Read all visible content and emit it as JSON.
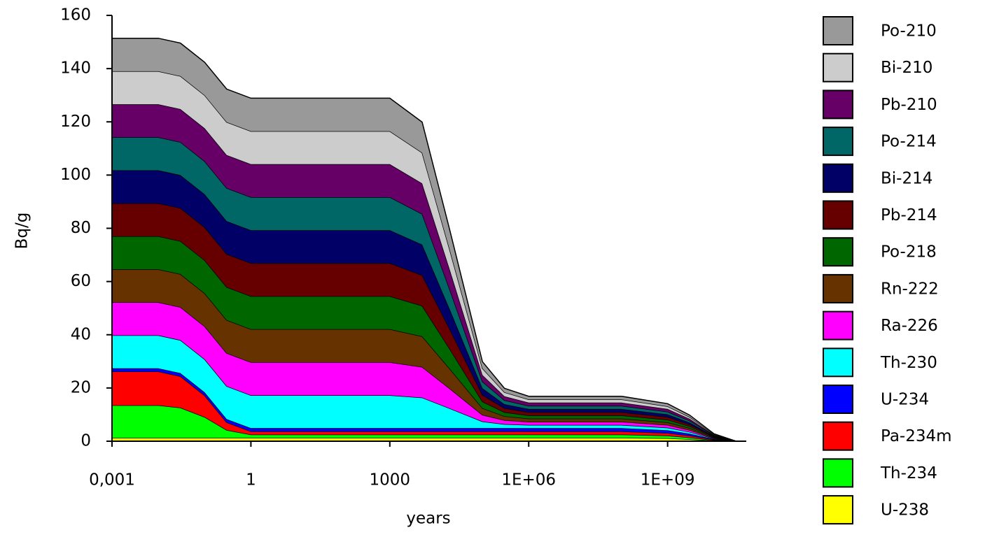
{
  "chart_data": {
    "type": "stacked_area",
    "x_label": "years",
    "y_label": "Bq/g",
    "x_scale": "log",
    "xlim": [
      0.001,
      50000000000
    ],
    "ylim": [
      0,
      160
    ],
    "xticks": [
      {
        "value": 0.001,
        "label": "0,001"
      },
      1,
      1000,
      {
        "value": 1000000,
        "label": "1E+06"
      },
      {
        "value": 1000000000,
        "label": "1E+09"
      }
    ],
    "yticks": [
      0,
      20,
      40,
      60,
      80,
      100,
      120,
      140,
      160
    ],
    "x": [
      0.001,
      0.01,
      0.03,
      0.1,
      0.3,
      1,
      1000,
      5000,
      20000,
      100000,
      300000,
      1000000,
      100000000,
      1000000000,
      3000000000,
      10000000000,
      30000000000
    ],
    "series": [
      {
        "name": "U-238",
        "color": "#ffff00",
        "values": [
          1.3,
          1.3,
          1.3,
          1.3,
          1.3,
          1.3,
          1.3,
          1.3,
          1.3,
          1.3,
          1.3,
          1.3,
          1.3,
          1.1,
          0.7,
          0.2,
          0
        ]
      },
      {
        "name": "Th-234",
        "color": "#00ff00",
        "values": [
          12.2,
          12.2,
          11.3,
          7.8,
          2.9,
          1.2,
          1.2,
          1.2,
          1.2,
          1.2,
          1.2,
          1.2,
          1.2,
          1.0,
          0.7,
          0.2,
          0
        ]
      },
      {
        "name": "Pa-234m",
        "color": "#ff0000",
        "values": [
          12.7,
          12.7,
          11.8,
          8.1,
          2.9,
          1.2,
          1.2,
          1.2,
          1.2,
          1.2,
          1.2,
          1.2,
          1.2,
          1.0,
          0.7,
          0.2,
          0
        ]
      },
      {
        "name": "U-234",
        "color": "#0000ff",
        "values": [
          1.2,
          1.2,
          1.2,
          1.2,
          1.2,
          1.2,
          1.2,
          1.2,
          1.2,
          1.2,
          1.2,
          1.2,
          1.2,
          1.0,
          0.7,
          0.2,
          0
        ]
      },
      {
        "name": "Th-230",
        "color": "#00ffff",
        "values": [
          12.4,
          12.4,
          12.4,
          12.4,
          12.4,
          12.4,
          12.4,
          11.5,
          7.4,
          2.5,
          1.5,
          1.2,
          1.2,
          1.0,
          0.7,
          0.2,
          0
        ]
      },
      {
        "name": "Ra-226",
        "color": "#ff00ff",
        "values": [
          12.4,
          12.4,
          12.4,
          12.4,
          12.4,
          12.4,
          12.4,
          11.5,
          7.4,
          2.5,
          1.5,
          1.2,
          1.2,
          1.0,
          0.7,
          0.2,
          0
        ]
      },
      {
        "name": "Rn-222",
        "color": "#663300",
        "values": [
          12.4,
          12.4,
          12.4,
          12.4,
          12.4,
          12.4,
          12.4,
          11.5,
          7.4,
          2.5,
          1.5,
          1.2,
          1.2,
          1.0,
          0.7,
          0.2,
          0
        ]
      },
      {
        "name": "Po-218",
        "color": "#006600",
        "values": [
          12.4,
          12.4,
          12.4,
          12.4,
          12.4,
          12.4,
          12.4,
          11.5,
          7.4,
          2.5,
          1.5,
          1.2,
          1.2,
          1.0,
          0.7,
          0.2,
          0
        ]
      },
      {
        "name": "Pb-214",
        "color": "#660000",
        "values": [
          12.4,
          12.4,
          12.4,
          12.4,
          12.4,
          12.4,
          12.4,
          11.5,
          7.4,
          2.5,
          1.5,
          1.2,
          1.2,
          1.0,
          0.7,
          0.2,
          0
        ]
      },
      {
        "name": "Bi-214",
        "color": "#000066",
        "values": [
          12.4,
          12.4,
          12.4,
          12.4,
          12.4,
          12.4,
          12.4,
          11.5,
          7.4,
          2.5,
          1.5,
          1.2,
          1.2,
          1.0,
          0.7,
          0.2,
          0
        ]
      },
      {
        "name": "Po-214",
        "color": "#006666",
        "values": [
          12.4,
          12.4,
          12.4,
          12.4,
          12.4,
          12.4,
          12.4,
          11.5,
          7.4,
          2.5,
          1.5,
          1.2,
          1.2,
          1.0,
          0.7,
          0.2,
          0
        ]
      },
      {
        "name": "Pb-210",
        "color": "#660066",
        "values": [
          12.4,
          12.4,
          12.4,
          12.4,
          12.4,
          12.4,
          12.4,
          11.5,
          7.4,
          2.5,
          1.5,
          1.2,
          1.2,
          1.0,
          0.7,
          0.2,
          0
        ]
      },
      {
        "name": "Bi-210",
        "color": "#cccccc",
        "values": [
          12.4,
          12.4,
          12.4,
          12.4,
          12.4,
          12.4,
          12.4,
          11.5,
          7.4,
          2.5,
          1.5,
          1.2,
          1.2,
          1.0,
          0.7,
          0.2,
          0
        ]
      },
      {
        "name": "Po-210",
        "color": "#999999",
        "values": [
          12.4,
          12.4,
          12.4,
          12.4,
          12.4,
          12.4,
          12.4,
          11.5,
          7.4,
          2.5,
          1.5,
          1.2,
          1.2,
          1.0,
          0.7,
          0.2,
          0
        ]
      }
    ]
  }
}
